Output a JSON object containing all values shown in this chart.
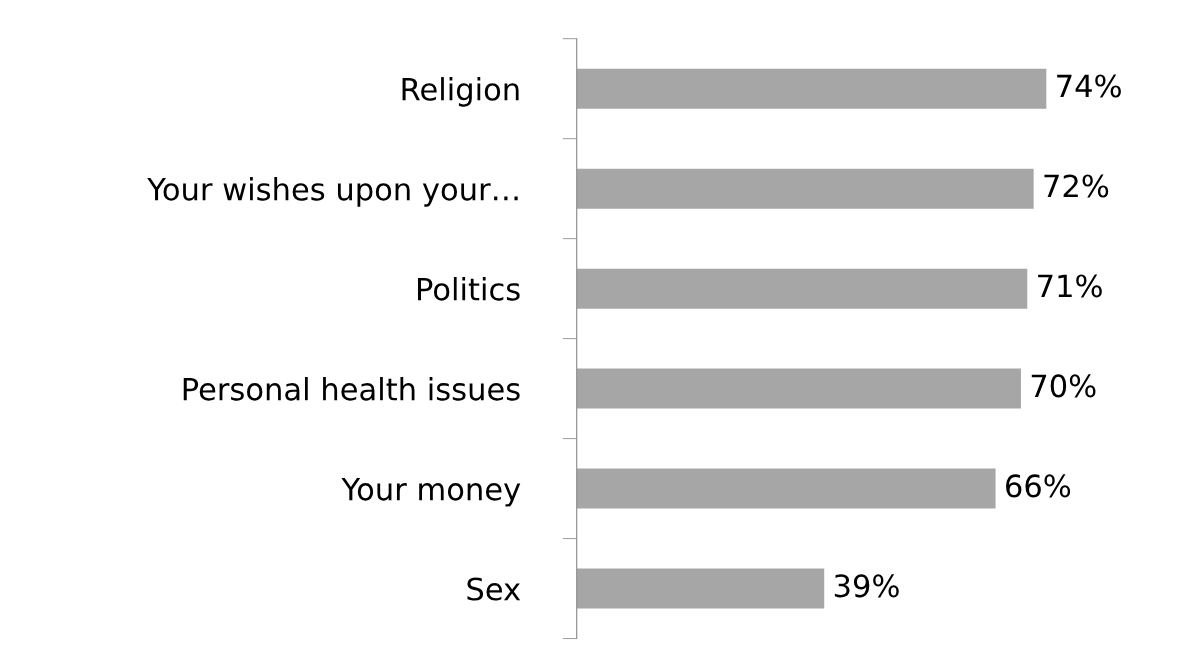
{
  "chart_data": {
    "type": "bar",
    "orientation": "horizontal",
    "categories": [
      "Religion",
      "Your wishes upon your…",
      "Politics",
      "Personal health issues",
      "Your money",
      "Sex"
    ],
    "values": [
      74,
      72,
      71,
      70,
      66,
      39
    ],
    "value_labels": [
      "74%",
      "72%",
      "71%",
      "70%",
      "66%",
      "39%"
    ],
    "color": "#a6a6a6",
    "grid": false,
    "legend": false,
    "tick_labels": "y"
  }
}
